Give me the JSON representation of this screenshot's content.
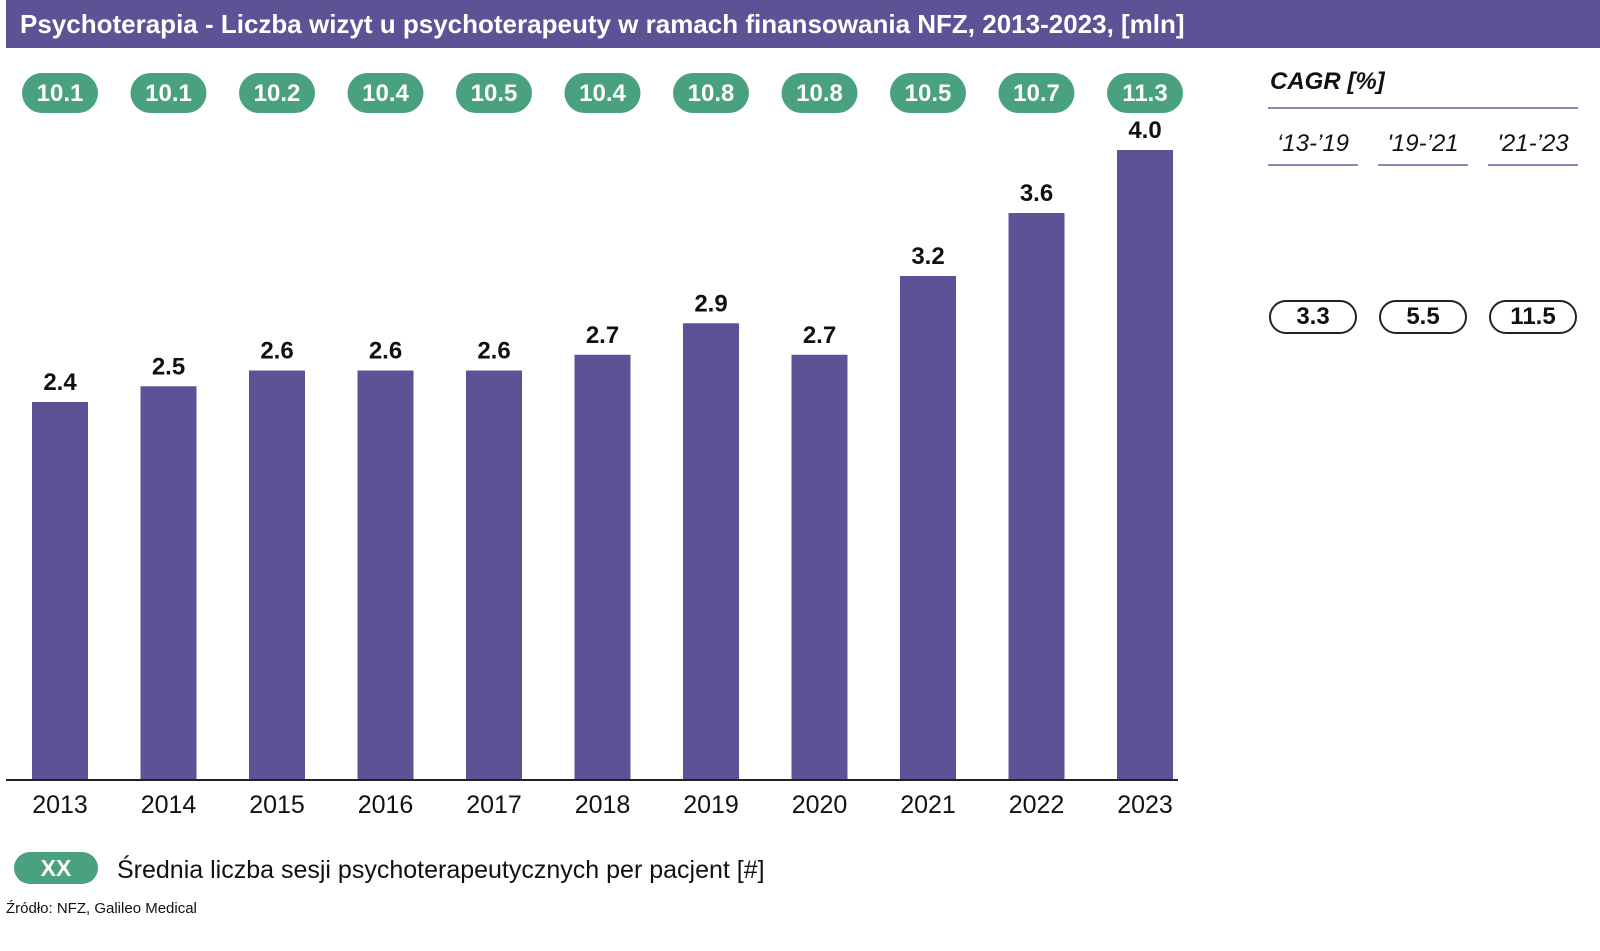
{
  "header": {
    "title": "Psychoterapia - Liczba wizyt u psychoterapeuty w ramach finansowania NFZ, 2013-2023, [mln]"
  },
  "chart_data": {
    "type": "bar",
    "title": "Psychoterapia - Liczba wizyt u psychoterapeuty w ramach finansowania NFZ, 2013-2023, [mln]",
    "categories": [
      "2013",
      "2014",
      "2015",
      "2016",
      "2017",
      "2018",
      "2019",
      "2020",
      "2021",
      "2022",
      "2023"
    ],
    "values": [
      2.4,
      2.5,
      2.6,
      2.6,
      2.6,
      2.7,
      2.9,
      2.7,
      3.2,
      3.6,
      4.0
    ],
    "value_labels": [
      "2.4",
      "2.5",
      "2.6",
      "2.6",
      "2.6",
      "2.7",
      "2.9",
      "2.7",
      "3.2",
      "3.6",
      "4.0"
    ],
    "sessions_per_patient": [
      "10.1",
      "10.1",
      "10.2",
      "10.4",
      "10.5",
      "10.4",
      "10.8",
      "10.8",
      "10.5",
      "10.7",
      "11.3"
    ],
    "ylim": [
      0,
      4.0
    ],
    "grid": false,
    "bar_color": "#5e5297",
    "pill_color": "#4aa17f"
  },
  "cagr": {
    "title": "CAGR [%]",
    "periods": [
      "‘13-’19",
      "'19-’21",
      "'21-’23"
    ],
    "values": [
      "3.3",
      "5.5",
      "11.5"
    ]
  },
  "legend": {
    "symbol": "XX",
    "text": "Średnia liczba sesji psychoterapeutycznych per pacjent [#]"
  },
  "source": "Źródło: NFZ, Galileo Medical"
}
